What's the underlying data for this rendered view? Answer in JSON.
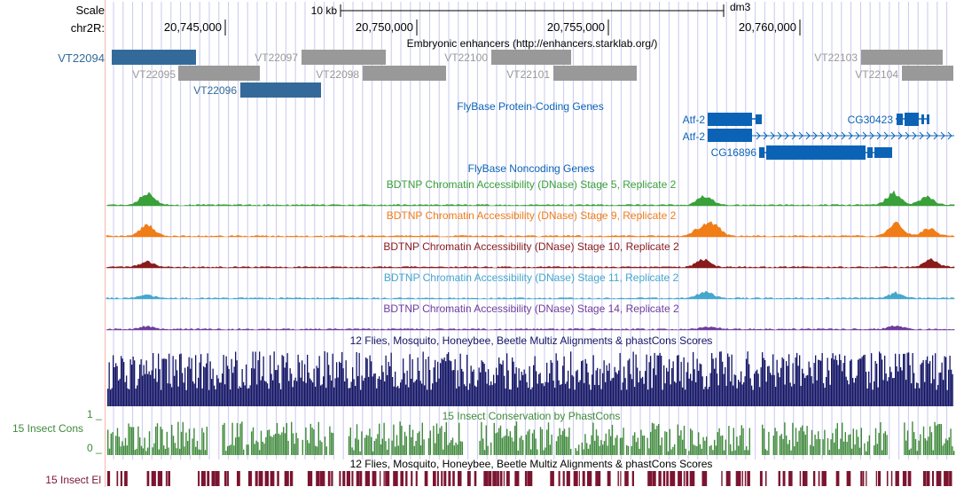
{
  "colors": {
    "gridline": "#c8c8ef",
    "enhancer_gray": "#999999",
    "enhancer_blue": "#346a99",
    "gene_blue": "#0c63b6",
    "green": "#3aa03a",
    "orange": "#f07d18",
    "darkred": "#8a1b1b",
    "lightblue": "#45a7cc",
    "purple": "#6e3d9b",
    "navy": "#131565",
    "insect_green": "#3f8a3a",
    "maroon": "#7b1430"
  },
  "scale": {
    "label": "Scale",
    "chrom_label": "chr2R:",
    "bar_label": "10 kb",
    "assembly": "dm3",
    "ticks": [
      "20,745,000",
      "20,750,000",
      "20,755,000",
      "20,760,000"
    ]
  },
  "enhancers": {
    "title": "Embryonic enhancers (http://enhancers.starklab.org/)",
    "items": [
      {
        "name": "VT22094",
        "highlight": true
      },
      {
        "name": "VT22095",
        "highlight": false
      },
      {
        "name": "VT22096",
        "highlight": true
      },
      {
        "name": "VT22097",
        "highlight": false
      },
      {
        "name": "VT22098",
        "highlight": false
      },
      {
        "name": "VT22100",
        "highlight": false
      },
      {
        "name": "VT22101",
        "highlight": false
      },
      {
        "name": "VT22103",
        "highlight": false
      },
      {
        "name": "VT22104",
        "highlight": false
      }
    ]
  },
  "genes": {
    "title": "FlyBase Protein-Coding Genes",
    "items": [
      "Atf-2",
      "Atf-2",
      "CG30423",
      "CG16896"
    ]
  },
  "noncoding": {
    "title": "FlyBase Noncoding Genes"
  },
  "dnase": [
    {
      "title": "BDTNP Chromatin Accessibility (DNase) Stage 5, Replicate 2",
      "color": "#3aa03a"
    },
    {
      "title": "BDTNP Chromatin Accessibility (DNase) Stage 9, Replicate 2",
      "color": "#f07d18"
    },
    {
      "title": "BDTNP Chromatin Accessibility (DNase) Stage 10, Replicate 2",
      "color": "#8a1b1b"
    },
    {
      "title": "BDTNP Chromatin Accessibility (DNase) Stage 11, Replicate 2",
      "color": "#45a7cc"
    },
    {
      "title": "BDTNP Chromatin Accessibility (DNase) Stage 14, Replicate 2",
      "color": "#6e3d9b"
    }
  ],
  "multiz": {
    "title": "12 Flies, Mosquito, Honeybee, Beetle Multiz Alignments & phastCons Scores"
  },
  "phastcons": {
    "title": "15 Insect Conservation by PhastCons",
    "side_label": "15 Insect Cons",
    "ymax": "1",
    "ymin": "0"
  },
  "elements": {
    "title": "12 Flies, Mosquito, Honeybee, Beetle Multiz Alignments & phastCons Scores",
    "side_label": "15 Insect El"
  }
}
